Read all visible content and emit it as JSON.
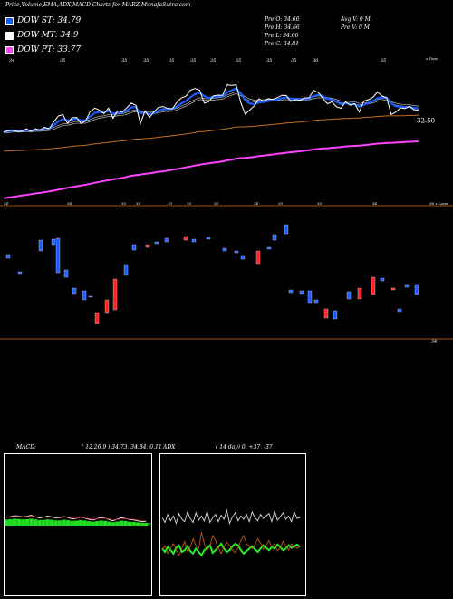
{
  "header": {
    "title": "Price,Volume,EMA,ADX,MACD Charts for MARZ MunafaSutra.com"
  },
  "legend": [
    {
      "label": "DOW ST: 34.79",
      "color": "#1a5cff"
    },
    {
      "label": "DOW MT: 34.9",
      "color": "#ffffff"
    },
    {
      "label": "DOW PT: 33.77",
      "color": "#ff44ff"
    }
  ],
  "stats": {
    "col1": [
      "Pre  O: 34.66",
      "Pre  H: 34.66",
      "Pre  L: 34.66",
      "Pre  C: 34.81"
    ],
    "col2": [
      "Avg V: 0  M",
      "Pre  V: 0  M"
    ]
  },
  "colors": {
    "ema_short": "#1a5cff",
    "ema_mid": "#ffffff",
    "ema_long": "#ff44ff",
    "price": "#ffffff",
    "ema_orange": "#c87020",
    "up": "#1a5cff",
    "down": "#ff2020",
    "divider": "#c87020"
  },
  "chart_data": [
    {
      "type": "line",
      "name": "price-ema",
      "top_ticks": [
        "34",
        "35",
        "35",
        "35",
        "35",
        "35",
        "35",
        "35",
        "35",
        "35",
        "36",
        "35"
      ],
      "right_label_top": "x Tops",
      "price_label": "32.50",
      "bottom_ticks": [
        "34",
        "34",
        "35",
        "35",
        "35",
        "35",
        "35",
        "34",
        "35",
        "35",
        "34"
      ],
      "right_label_bottom": "36 x Lows",
      "axis_label_low": "34",
      "price": [
        32.95,
        33.01,
        33.03,
        32.98,
        32.99,
        33.08,
        32.97,
        33.08,
        33.03,
        33.14,
        33.08,
        33.36,
        33.59,
        33.64,
        33.3,
        33.52,
        33.53,
        33.29,
        33.4,
        33.77,
        33.9,
        33.82,
        33.68,
        33.9,
        33.5,
        33.79,
        33.74,
        33.91,
        34.09,
        34.01,
        33.29,
        33.79,
        33.53,
        33.76,
        33.93,
        33.96,
        33.88,
        33.87,
        34.13,
        34.3,
        34.37,
        34.61,
        34.67,
        34.6,
        34.09,
        34.15,
        34.38,
        34.41,
        34.4,
        34.81,
        34.79,
        34.81,
        34.12,
        33.66,
        33.83,
        33.99,
        34.26,
        34.17,
        34.27,
        34.24,
        34.31,
        34.4,
        34.39,
        34.16,
        34.23,
        34.21,
        34.3,
        34.3,
        34.6,
        34.51,
        34.29,
        34.07,
        34.14,
        33.95,
        33.89,
        34.15,
        34.01,
        34.07,
        33.74,
        34.18,
        34.23,
        34.32,
        34.54,
        34.37,
        34.31,
        33.64,
        33.74,
        33.91,
        33.88,
        33.97,
        33.83,
        33.82
      ],
      "ema_short": [
        32.95,
        33.0,
        33.02,
        33.0,
        33.0,
        33.04,
        33.01,
        33.05,
        33.04,
        33.09,
        33.09,
        33.23,
        33.37,
        33.47,
        33.41,
        33.45,
        33.48,
        33.41,
        33.42,
        33.57,
        33.71,
        33.75,
        33.72,
        33.79,
        33.67,
        33.72,
        33.73,
        33.8,
        33.92,
        33.95,
        33.69,
        33.73,
        33.66,
        33.7,
        33.79,
        33.86,
        33.87,
        33.87,
        33.96,
        34.08,
        34.18,
        34.33,
        34.45,
        34.5,
        34.37,
        34.3,
        34.33,
        34.35,
        34.37,
        34.52,
        34.6,
        34.67,
        34.48,
        34.21,
        34.08,
        34.05,
        34.12,
        34.14,
        34.18,
        34.2,
        34.24,
        34.29,
        34.32,
        34.27,
        34.26,
        34.25,
        34.26,
        34.28,
        34.37,
        34.42,
        34.38,
        34.27,
        34.23,
        34.14,
        34.06,
        34.09,
        34.06,
        34.06,
        33.96,
        34.03,
        34.09,
        34.17,
        34.29,
        34.32,
        34.31,
        34.09,
        33.97,
        33.95,
        33.93,
        33.94,
        33.9,
        33.88
      ],
      "ema_mid": [
        32.95,
        32.97,
        32.99,
        32.99,
        32.99,
        33.01,
        33.0,
        33.02,
        33.02,
        33.04,
        33.05,
        33.1,
        33.18,
        33.25,
        33.26,
        33.3,
        33.34,
        33.33,
        33.34,
        33.41,
        33.49,
        33.54,
        33.56,
        33.61,
        33.6,
        33.63,
        33.64,
        33.69,
        33.76,
        33.8,
        33.72,
        33.73,
        33.7,
        33.71,
        33.75,
        33.79,
        33.8,
        33.81,
        33.86,
        33.94,
        34.01,
        34.11,
        34.2,
        34.27,
        34.24,
        34.23,
        34.25,
        34.27,
        34.29,
        34.37,
        34.44,
        34.5,
        34.43,
        34.3,
        34.22,
        34.18,
        34.19,
        34.19,
        34.2,
        34.21,
        34.23,
        34.25,
        34.27,
        34.25,
        34.25,
        34.24,
        34.25,
        34.26,
        34.31,
        34.34,
        34.33,
        34.28,
        34.25,
        34.2,
        34.14,
        34.14,
        34.12,
        34.11,
        34.05,
        34.07,
        34.09,
        34.13,
        34.2,
        34.23,
        34.24,
        34.12,
        34.05,
        34.02,
        34.0,
        33.99,
        33.96,
        33.94
      ],
      "ema_long": [
        31.0,
        31.03,
        31.06,
        31.08,
        31.1,
        31.13,
        31.15,
        31.18,
        31.2,
        31.23,
        31.26,
        31.29,
        31.33,
        31.37,
        31.4,
        31.44,
        31.47,
        31.5,
        31.53,
        31.57,
        31.61,
        31.65,
        31.68,
        31.72,
        31.75,
        31.78,
        31.81,
        31.85,
        31.88,
        31.92,
        31.94,
        31.97,
        31.99,
        32.02,
        32.05,
        32.08,
        32.1,
        32.13,
        32.16,
        32.19,
        32.22,
        32.26,
        32.29,
        32.33,
        32.35,
        32.37,
        32.4,
        32.43,
        32.46,
        32.49,
        32.53,
        32.56,
        32.58,
        32.6,
        32.62,
        32.64,
        32.67,
        32.69,
        32.71,
        32.73,
        32.76,
        32.78,
        32.8,
        32.82,
        32.84,
        32.86,
        32.88,
        32.9,
        32.92,
        32.95,
        32.97,
        32.98,
        33.0,
        33.02,
        33.03,
        33.05,
        33.06,
        33.08,
        33.09,
        33.11,
        33.13,
        33.14,
        33.16,
        33.18,
        33.19,
        33.2,
        33.21,
        33.22,
        33.23,
        33.24,
        33.25,
        33.26
      ],
      "ema_orange": [
        32.2,
        32.21,
        32.22,
        32.23,
        32.23,
        32.24,
        32.25,
        32.26,
        32.27,
        32.28,
        32.29,
        32.31,
        32.33,
        32.35,
        32.37,
        32.39,
        32.41,
        32.42,
        32.44,
        32.46,
        32.49,
        32.51,
        32.53,
        32.55,
        32.57,
        32.59,
        32.61,
        32.63,
        32.65,
        32.68,
        32.68,
        32.7,
        32.71,
        32.73,
        32.75,
        32.77,
        32.79,
        32.81,
        32.83,
        32.86,
        32.88,
        32.91,
        32.94,
        32.97,
        32.98,
        33.0,
        33.02,
        33.04,
        33.06,
        33.09,
        33.12,
        33.15,
        33.16,
        33.16,
        33.17,
        33.18,
        33.2,
        33.22,
        33.23,
        33.25,
        33.27,
        33.29,
        33.31,
        33.32,
        33.34,
        33.35,
        33.37,
        33.38,
        33.41,
        33.43,
        33.44,
        33.45,
        33.46,
        33.47,
        33.48,
        33.49,
        33.5,
        33.51,
        33.51,
        33.53,
        33.54,
        33.55,
        33.57,
        33.58,
        33.59,
        33.59,
        33.59,
        33.6,
        33.6,
        33.61,
        33.61,
        33.62
      ],
      "ylim": [
        30.2,
        35.3
      ],
      "ema_long_lower": [
        30.35,
        30.38,
        30.4,
        30.43,
        30.46,
        30.48,
        30.51,
        30.54,
        30.56,
        30.59,
        30.62,
        30.65,
        30.69,
        30.72,
        30.76,
        30.79,
        30.82,
        30.85,
        30.88,
        30.92,
        30.96,
        30.99,
        31.03,
        31.06,
        31.09,
        31.12,
        31.15,
        31.19,
        31.23,
        31.26,
        31.28,
        31.31,
        31.33,
        31.36,
        31.39,
        31.41,
        31.44,
        31.47,
        31.5,
        31.53,
        31.57,
        31.6,
        31.64,
        31.67,
        31.7,
        31.72,
        31.75,
        31.77,
        31.8,
        31.84,
        31.87,
        31.91,
        31.93,
        31.94,
        31.96,
        31.98,
        32.01,
        32.03,
        32.05,
        32.07,
        32.1,
        32.12,
        32.14,
        32.16,
        32.18,
        32.2,
        32.22,
        32.24,
        32.27,
        32.29,
        32.31,
        32.32,
        32.34,
        32.35,
        32.37,
        32.39,
        32.4,
        32.41,
        32.42,
        32.44,
        32.46,
        32.48,
        32.5,
        32.51,
        32.53,
        32.53,
        32.54,
        32.55,
        32.56,
        32.57,
        32.58,
        32.59
      ]
    },
    {
      "type": "bar",
      "name": "volume",
      "bars": [
        {
          "x": 9,
          "open": 281,
          "close": 285,
          "color": "up"
        },
        {
          "x": 22,
          "open": 300,
          "close": 302,
          "color": "up"
        },
        {
          "x": 45,
          "open": 265,
          "close": 277,
          "color": "up"
        },
        {
          "x": 59,
          "open": 264,
          "close": 270,
          "color": "up"
        },
        {
          "x": 64,
          "open": 263,
          "close": 301,
          "color": "up"
        },
        {
          "x": 73,
          "open": 298,
          "close": 306,
          "color": "up"
        },
        {
          "x": 82,
          "open": 318,
          "close": 324,
          "color": "up"
        },
        {
          "x": 93,
          "open": 321,
          "close": 331,
          "color": "up"
        },
        {
          "x": 100,
          "open": 327,
          "close": 328,
          "color": "up"
        },
        {
          "x": 107,
          "open": 345,
          "close": 357,
          "color": "down"
        },
        {
          "x": 118,
          "open": 331,
          "close": 345,
          "color": "down"
        },
        {
          "x": 127,
          "open": 308,
          "close": 342,
          "color": "down"
        },
        {
          "x": 139,
          "open": 292,
          "close": 304,
          "color": "up"
        },
        {
          "x": 148,
          "open": 270,
          "close": 276,
          "color": "up"
        },
        {
          "x": 163,
          "open": 270,
          "close": 273,
          "color": "down"
        },
        {
          "x": 173,
          "open": 267,
          "close": 269,
          "color": "up"
        },
        {
          "x": 184,
          "open": 263,
          "close": 267,
          "color": "up"
        },
        {
          "x": 205,
          "open": 261,
          "close": 265,
          "color": "down"
        },
        {
          "x": 214,
          "open": 264,
          "close": 267,
          "color": "up"
        },
        {
          "x": 230,
          "open": 262,
          "close": 264,
          "color": "up"
        },
        {
          "x": 248,
          "open": 274,
          "close": 277,
          "color": "up"
        },
        {
          "x": 261,
          "open": 277,
          "close": 279,
          "color": "up"
        },
        {
          "x": 268,
          "open": 282,
          "close": 286,
          "color": "up"
        },
        {
          "x": 285,
          "open": 277,
          "close": 291,
          "color": "down"
        },
        {
          "x": 297,
          "open": 273,
          "close": 275,
          "color": "up"
        },
        {
          "x": 303,
          "open": 259,
          "close": 265,
          "color": "up"
        },
        {
          "x": 316,
          "open": 248,
          "close": 258,
          "color": "up"
        },
        {
          "x": 321,
          "open": 320,
          "close": 323,
          "color": "up"
        },
        {
          "x": 333,
          "open": 321,
          "close": 324,
          "color": "up"
        },
        {
          "x": 342,
          "open": 321,
          "close": 334,
          "color": "up"
        },
        {
          "x": 349,
          "open": 331,
          "close": 334,
          "color": "up"
        },
        {
          "x": 360,
          "open": 341,
          "close": 351,
          "color": "down"
        },
        {
          "x": 370,
          "open": 343,
          "close": 352,
          "color": "up"
        },
        {
          "x": 385,
          "open": 322,
          "close": 330,
          "color": "up"
        },
        {
          "x": 397,
          "open": 318,
          "close": 330,
          "color": "down"
        },
        {
          "x": 412,
          "open": 306,
          "close": 325,
          "color": "down"
        },
        {
          "x": 422,
          "open": 307,
          "close": 310,
          "color": "up"
        },
        {
          "x": 434,
          "open": 318,
          "close": 320,
          "color": "down"
        },
        {
          "x": 441,
          "open": 341,
          "close": 344,
          "color": "up"
        },
        {
          "x": 449,
          "open": 314,
          "close": 317,
          "color": "up"
        },
        {
          "x": 460,
          "open": 314,
          "close": 325,
          "color": "up"
        }
      ]
    },
    {
      "type": "area",
      "name": "macd",
      "title": "MACD:",
      "params": "( 12,26,9 ) 34.73, 34.84, 0.11",
      "macd": [
        0.42,
        0.44,
        0.5,
        0.48,
        0.44,
        0.46,
        0.52,
        0.44,
        0.36,
        0.4,
        0.47,
        0.43,
        0.34,
        0.36,
        0.45,
        0.38,
        0.3,
        0.32,
        0.42,
        0.36,
        0.28,
        0.22,
        0.3,
        0.38,
        0.34,
        0.26,
        0.18,
        0.28,
        0.38,
        0.33,
        0.26,
        0.24,
        0.18,
        0.14,
        0.15
      ],
      "signal": [
        0.38,
        0.4,
        0.44,
        0.45,
        0.44,
        0.45,
        0.47,
        0.45,
        0.42,
        0.41,
        0.43,
        0.43,
        0.39,
        0.38,
        0.4,
        0.39,
        0.36,
        0.34,
        0.37,
        0.36,
        0.33,
        0.29,
        0.3,
        0.33,
        0.33,
        0.3,
        0.25,
        0.26,
        0.3,
        0.31,
        0.29,
        0.27,
        0.23,
        0.2,
        0.18
      ],
      "hist": [
        0.26,
        0.28,
        0.31,
        0.29,
        0.27,
        0.28,
        0.31,
        0.27,
        0.23,
        0.24,
        0.27,
        0.25,
        0.21,
        0.21,
        0.25,
        0.22,
        0.18,
        0.19,
        0.23,
        0.2,
        0.16,
        0.13,
        0.16,
        0.2,
        0.18,
        0.14,
        0.1,
        0.14,
        0.19,
        0.17,
        0.13,
        0.12,
        0.09,
        0.07,
        0.06
      ]
    },
    {
      "type": "line",
      "name": "adx",
      "title": "ADX",
      "params": "( 14  day) 0, +37, -37",
      "adx": [
        62,
        56,
        66,
        58,
        64,
        55,
        67,
        60,
        57,
        69,
        61,
        56,
        68,
        59,
        64,
        58,
        70,
        56,
        62,
        66,
        57,
        65,
        60,
        71,
        55,
        63,
        68,
        58,
        64,
        60,
        66,
        57,
        69,
        62,
        58,
        66,
        61,
        64,
        67,
        57,
        70,
        59,
        63,
        68,
        60,
        64,
        57,
        69,
        61,
        62
      ],
      "plus_di": [
        22,
        28,
        18,
        25,
        30,
        22,
        16,
        24,
        33,
        20,
        26,
        36,
        28,
        24,
        44,
        30,
        22,
        27,
        40,
        34,
        24,
        18,
        26,
        32,
        28,
        22,
        19,
        25,
        34,
        40,
        30,
        27,
        24,
        29,
        36,
        31,
        23,
        28,
        34,
        26,
        30,
        21,
        25,
        33,
        27,
        22,
        30,
        26,
        24,
        28
      ],
      "minus_di": [
        24,
        20,
        26,
        22,
        18,
        25,
        28,
        20,
        22,
        27,
        21,
        18,
        24,
        20,
        16,
        22,
        25,
        28,
        19,
        22,
        26,
        30,
        24,
        20,
        22,
        27,
        30,
        28,
        22,
        18,
        21,
        24,
        27,
        23,
        20,
        24,
        28,
        25,
        22,
        26,
        24,
        29,
        26,
        22,
        24,
        28,
        25,
        27,
        29,
        26
      ]
    }
  ]
}
